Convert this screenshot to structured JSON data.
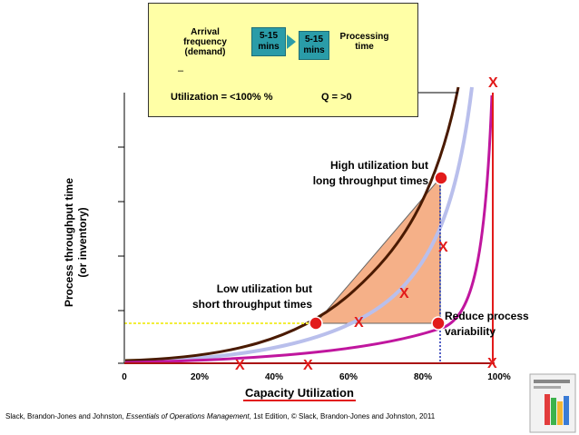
{
  "info": {
    "arrival_label": "Arrival frequency (demand)",
    "arrival_lines": [
      "Arrival",
      "frequency",
      "(demand)"
    ],
    "arrival_range": "5-15 mins",
    "processing_range": "5-15 mins",
    "processing_label": "Processing time",
    "processing_lines": [
      "Processing",
      "time"
    ],
    "dash": "–",
    "utilization_note": "Utilization = <100% %",
    "queue_note": "Q = >0"
  },
  "axes": {
    "y_label_line1": "Process throughput time",
    "y_label_line2": "(or inventory)",
    "x_label": "Capacity Utilization",
    "x_ticks": [
      "0",
      "20%",
      "40%",
      "60%",
      "80%",
      "100%"
    ]
  },
  "annotations": {
    "high_line1": "High utilization but",
    "high_line2": "long throughput times",
    "low_line1": "Low utilization but",
    "low_line2": "short throughput times",
    "reduce_line1": "Reduce process",
    "reduce_line2": "variability"
  },
  "marks": {
    "x_symbol": "X"
  },
  "footer": {
    "citation_prefix": "Slack, Brandon-Jones and Johnston, ",
    "citation_title": "Essentials of Operations Management",
    "citation_suffix": ", 1st Edition, © Slack, Brandon-Jones and Johnston, 2011"
  },
  "colors": {
    "box_fill": "#ffffa6",
    "mins_fill": "#2a9ca8",
    "curve_dark": "#4a1a00",
    "curve_light": "#b9bfec",
    "curve_magenta": "#c0169e",
    "triangle_fill": "#f5a87c",
    "accent_red": "#e21b1b",
    "yellow_dotted": "#f2ee3a",
    "blue_dotted": "#1a2bb0"
  }
}
